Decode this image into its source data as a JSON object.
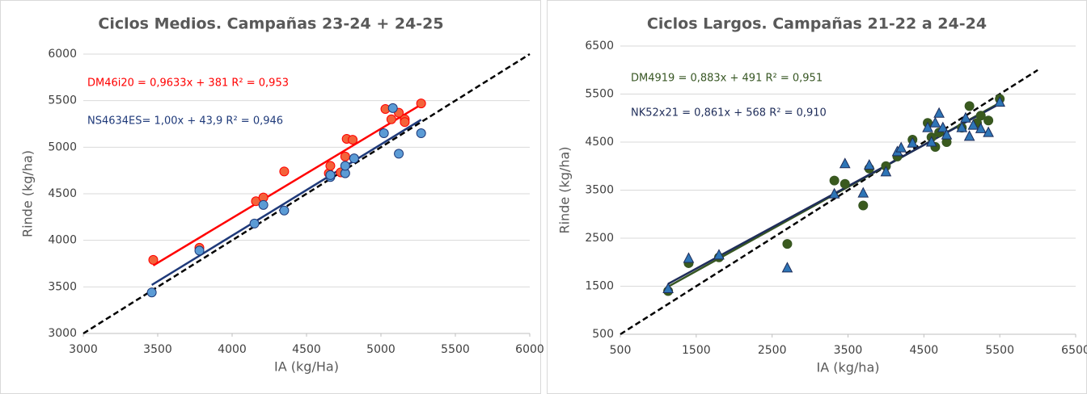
{
  "chart_data": [
    {
      "type": "scatter",
      "title": "Ciclos Medios. Campañas 23-24 + 24-25",
      "x_label": "IA (kg/Ha)",
      "y_label": "Rinde (kg/ha)",
      "xlim": [
        3000,
        6000
      ],
      "xticks": [
        3000,
        3500,
        4000,
        4500,
        5000,
        5500,
        6000
      ],
      "ylim": [
        3000,
        6000
      ],
      "yticks": [
        3000,
        3500,
        4000,
        4500,
        5000,
        5500,
        6000
      ],
      "grid": true,
      "series": [
        {
          "name": "DM46i20 = 0,9633x + 381 R² = 0,953",
          "color": "#ff0000",
          "marker_color": "#f4623a",
          "marker": "circle",
          "x": [
            3470,
            3780,
            4160,
            4210,
            4350,
            4650,
            4660,
            4730,
            4760,
            4770,
            4810,
            5030,
            5070,
            5120,
            5160,
            5160,
            5270
          ],
          "values": [
            3790,
            3920,
            4420,
            4460,
            4740,
            4720,
            4800,
            4730,
            4900,
            5090,
            5080,
            5410,
            5300,
            5370,
            5300,
            5270,
            5470
          ]
        },
        {
          "name": "NS4634ES= 1,00x + 43,9 R² = 0,946",
          "color": "#1f3a7a",
          "marker_color": "#5b9bd5",
          "marker": "circle",
          "x": [
            3460,
            3780,
            4150,
            4210,
            4350,
            4660,
            4660,
            4760,
            4760,
            4820,
            5020,
            5080,
            5120,
            5270
          ],
          "values": [
            3440,
            3890,
            4180,
            4380,
            4320,
            4680,
            4700,
            4720,
            4800,
            4880,
            5150,
            5420,
            4930,
            5150
          ]
        }
      ]
    },
    {
      "type": "scatter",
      "title": "Ciclos Largos. Campañas 21-22 a 24-24",
      "x_label": "IA (kg/ha)",
      "y_label": "Rinde (kg/ha)",
      "xlim": [
        500,
        6500
      ],
      "xticks": [
        500,
        1500,
        2500,
        3500,
        4500,
        5500,
        6500
      ],
      "ylim": [
        500,
        6500
      ],
      "yticks": [
        500,
        1500,
        2500,
        3500,
        4500,
        5500,
        6500
      ],
      "grid": true,
      "series": [
        {
          "name": "DM4919 = 0,883x + 491 R² = 0,951",
          "color": "#375623",
          "marker_color": "#3a5a1e",
          "marker": "circle",
          "x": [
            1130,
            1400,
            1800,
            2700,
            3320,
            3460,
            3700,
            3780,
            4000,
            4150,
            4350,
            4550,
            4600,
            4650,
            4700,
            4800,
            5000,
            5100,
            5200,
            5250,
            5350,
            5500
          ],
          "values": [
            1400,
            1980,
            2100,
            2380,
            3700,
            3630,
            3180,
            3950,
            4000,
            4200,
            4550,
            4900,
            4600,
            4400,
            4700,
            4500,
            4800,
            5250,
            4900,
            5050,
            4950,
            5400
          ]
        },
        {
          "name": "NK52x21 = 0,861x + 568 R² = 0,910",
          "color": "#1f2d5a",
          "marker_color": "#2e75b6",
          "marker": "triangle",
          "x": [
            1130,
            1400,
            1800,
            2700,
            3320,
            3460,
            3700,
            3780,
            4000,
            4150,
            4200,
            4350,
            4550,
            4600,
            4650,
            4700,
            4750,
            4800,
            5000,
            5050,
            5100,
            5150,
            5250,
            5350,
            5500
          ],
          "values": [
            1450,
            2080,
            2150,
            1880,
            3420,
            4050,
            3440,
            4020,
            3880,
            4300,
            4380,
            4480,
            4800,
            4500,
            4900,
            5100,
            4800,
            4650,
            4800,
            5000,
            4620,
            4850,
            4780,
            4700,
            5330
          ]
        }
      ]
    }
  ]
}
